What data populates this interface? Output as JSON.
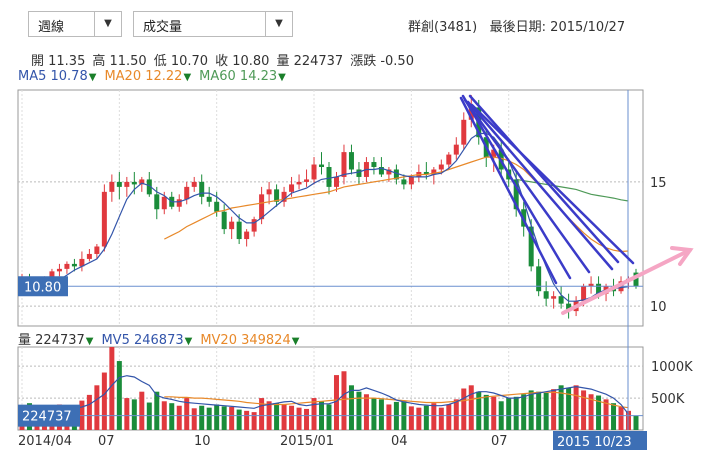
{
  "controls": {
    "period": "週線",
    "indicator": "成交量",
    "arrow": "▼"
  },
  "stock": {
    "name": "群創(3481)",
    "last_date_label": "最後日期:",
    "last_date": "2015/10/27"
  },
  "ohlc": [
    {
      "label": "開",
      "value": "11.35"
    },
    {
      "label": "高",
      "value": "11.50"
    },
    {
      "label": "低",
      "value": "10.70"
    },
    {
      "label": "收",
      "value": "10.80"
    },
    {
      "label": "量",
      "value": "224737"
    },
    {
      "label": "漲跌",
      "value": "-0.50"
    }
  ],
  "ma": [
    {
      "label": "MA5",
      "value": "10.78",
      "color": "#3355aa"
    },
    {
      "label": "MA20",
      "value": "12.22",
      "color": "#e8892a"
    },
    {
      "label": "MA60",
      "value": "14.23",
      "color": "#4f9a58"
    }
  ],
  "vol_ma": [
    {
      "label": "量",
      "value": "224737",
      "color": "#333333"
    },
    {
      "label": "MV5",
      "value": "246873",
      "color": "#3355aa"
    },
    {
      "label": "MV20",
      "value": "349824",
      "color": "#e8892a"
    }
  ],
  "down_marker": "▼",
  "colors": {
    "up": "#e0393e",
    "down": "#1a8c3a",
    "ma5": "#3355aa",
    "ma20": "#e8892a",
    "ma60": "#4f9a58",
    "badge": "#3d6fb5",
    "annotation": "#3b3bc8",
    "arrow": "#f5a6c4"
  },
  "chart_data": {
    "type": "candlestick",
    "price_axis": {
      "ticks": [
        10,
        15
      ],
      "range": [
        9.2,
        18.7
      ]
    },
    "volume_axis": {
      "ticks": [
        "1000K",
        "500K"
      ],
      "tick_values": [
        1000000,
        500000
      ],
      "range": [
        0,
        1300000
      ]
    },
    "x_labels": [
      "2014/04",
      "07",
      "10",
      "2015/01",
      "04",
      "07"
    ],
    "current_price_label": "10.80",
    "current_volume_label": "224737",
    "current_date_label": "2015 10/23",
    "candles": [
      [
        10.9,
        11.3,
        10.7,
        11.1,
        330000
      ],
      [
        11.1,
        11.3,
        10.5,
        10.6,
        420000
      ],
      [
        10.6,
        11.0,
        10.5,
        10.9,
        330000
      ],
      [
        10.8,
        11.2,
        10.6,
        11.0,
        250000
      ],
      [
        11.0,
        11.5,
        10.9,
        11.4,
        300000
      ],
      [
        11.4,
        11.7,
        11.2,
        11.5,
        400000
      ],
      [
        11.5,
        11.8,
        11.3,
        11.7,
        380000
      ],
      [
        11.7,
        11.9,
        11.4,
        11.6,
        300000
      ],
      [
        11.6,
        12.2,
        11.4,
        11.9,
        460000
      ],
      [
        11.9,
        12.3,
        11.8,
        12.1,
        550000
      ],
      [
        12.1,
        12.5,
        11.9,
        12.4,
        700000
      ],
      [
        12.4,
        14.9,
        12.2,
        14.6,
        900000
      ],
      [
        14.6,
        15.3,
        14.2,
        15.0,
        1300000
      ],
      [
        15.0,
        15.4,
        14.3,
        14.8,
        1080000
      ],
      [
        14.8,
        15.2,
        14.4,
        15.0,
        500000
      ],
      [
        15.0,
        15.4,
        14.5,
        14.9,
        480000
      ],
      [
        14.9,
        15.2,
        14.6,
        15.1,
        600000
      ],
      [
        15.1,
        15.4,
        14.4,
        14.5,
        430000
      ],
      [
        14.5,
        14.8,
        13.5,
        13.9,
        600000
      ],
      [
        13.9,
        14.6,
        13.7,
        14.4,
        450000
      ],
      [
        14.4,
        14.6,
        13.9,
        14.0,
        420000
      ],
      [
        14.0,
        14.5,
        13.8,
        14.3,
        380000
      ],
      [
        14.3,
        15.0,
        14.1,
        14.8,
        500000
      ],
      [
        14.8,
        15.2,
        14.6,
        15.0,
        340000
      ],
      [
        15.0,
        15.3,
        14.1,
        14.4,
        380000
      ],
      [
        14.4,
        14.8,
        14.0,
        14.2,
        350000
      ],
      [
        14.2,
        14.6,
        13.6,
        13.8,
        400000
      ],
      [
        13.8,
        14.1,
        12.9,
        13.1,
        370000
      ],
      [
        13.1,
        13.6,
        12.7,
        13.4,
        360000
      ],
      [
        13.4,
        13.7,
        12.5,
        12.7,
        320000
      ],
      [
        12.7,
        13.1,
        12.4,
        13.0,
        300000
      ],
      [
        13.0,
        13.6,
        12.8,
        13.5,
        280000
      ],
      [
        13.5,
        14.8,
        13.3,
        14.5,
        500000
      ],
      [
        14.5,
        15.0,
        14.1,
        14.7,
        450000
      ],
      [
        14.7,
        14.9,
        14.0,
        14.2,
        420000
      ],
      [
        14.2,
        14.8,
        14.0,
        14.6,
        400000
      ],
      [
        14.6,
        15.2,
        14.4,
        14.9,
        380000
      ],
      [
        14.9,
        15.3,
        14.7,
        15.0,
        350000
      ],
      [
        15.0,
        15.5,
        14.8,
        15.1,
        330000
      ],
      [
        15.1,
        16.0,
        14.9,
        15.7,
        500000
      ],
      [
        15.7,
        16.2,
        15.3,
        15.6,
        450000
      ],
      [
        15.6,
        15.8,
        14.5,
        14.8,
        400000
      ],
      [
        14.8,
        15.4,
        14.6,
        15.2,
        860000
      ],
      [
        15.2,
        16.5,
        14.9,
        16.2,
        920000
      ],
      [
        16.2,
        16.5,
        15.3,
        15.5,
        700000
      ],
      [
        15.5,
        15.8,
        14.9,
        15.2,
        600000
      ],
      [
        15.2,
        16.0,
        15.0,
        15.8,
        560000
      ],
      [
        15.8,
        16.0,
        15.3,
        15.6,
        500000
      ],
      [
        15.6,
        16.0,
        15.2,
        15.3,
        480000
      ],
      [
        15.3,
        15.6,
        15.0,
        15.5,
        400000
      ],
      [
        15.5,
        15.7,
        14.9,
        15.1,
        440000
      ],
      [
        15.1,
        15.3,
        14.7,
        14.9,
        450000
      ],
      [
        14.9,
        15.3,
        14.7,
        15.2,
        370000
      ],
      [
        15.2,
        15.7,
        15.0,
        15.4,
        350000
      ],
      [
        15.4,
        15.8,
        15.1,
        15.3,
        380000
      ],
      [
        15.3,
        15.6,
        14.9,
        15.5,
        420000
      ],
      [
        15.5,
        15.9,
        15.3,
        15.7,
        350000
      ],
      [
        15.7,
        16.2,
        15.5,
        16.1,
        400000
      ],
      [
        16.1,
        16.8,
        15.9,
        16.5,
        480000
      ],
      [
        16.5,
        17.8,
        16.3,
        17.5,
        650000
      ],
      [
        17.5,
        18.5,
        17.2,
        18.0,
        700000
      ],
      [
        18.0,
        18.3,
        16.5,
        16.8,
        600000
      ],
      [
        16.8,
        17.1,
        15.6,
        16.0,
        550000
      ],
      [
        16.0,
        16.5,
        15.4,
        16.3,
        520000
      ],
      [
        16.3,
        16.6,
        15.2,
        15.5,
        450000
      ],
      [
        15.5,
        15.8,
        14.8,
        15.1,
        500000
      ],
      [
        15.1,
        15.4,
        13.6,
        13.9,
        520000
      ],
      [
        13.9,
        14.2,
        12.8,
        13.2,
        560000
      ],
      [
        13.2,
        13.5,
        11.4,
        11.6,
        620000
      ],
      [
        11.6,
        11.9,
        10.4,
        10.6,
        600000
      ],
      [
        10.6,
        11.0,
        10.0,
        10.3,
        580000
      ],
      [
        10.3,
        10.6,
        9.9,
        10.4,
        640000
      ],
      [
        10.4,
        10.8,
        9.9,
        10.1,
        700000
      ],
      [
        10.1,
        10.5,
        9.5,
        9.8,
        660000
      ],
      [
        9.8,
        10.4,
        9.6,
        10.2,
        700000
      ],
      [
        10.2,
        10.9,
        10.0,
        10.8,
        620000
      ],
      [
        10.8,
        11.2,
        10.5,
        10.9,
        560000
      ],
      [
        10.9,
        11.2,
        10.3,
        10.5,
        540000
      ],
      [
        10.5,
        10.9,
        10.2,
        10.8,
        480000
      ],
      [
        10.8,
        11.1,
        10.4,
        10.6,
        420000
      ],
      [
        10.6,
        11.2,
        10.5,
        11.0,
        360000
      ],
      [
        11.0,
        11.2,
        10.7,
        11.1,
        300000
      ],
      [
        11.35,
        11.5,
        10.7,
        10.8,
        224737
      ]
    ],
    "ma5": [
      11.0,
      10.95,
      10.85,
      10.85,
      10.95,
      11.05,
      11.25,
      11.45,
      11.6,
      11.75,
      11.9,
      12.3,
      12.9,
      13.6,
      14.3,
      14.7,
      14.95,
      14.85,
      14.6,
      14.45,
      14.2,
      14.2,
      14.3,
      14.45,
      14.55,
      14.55,
      14.4,
      14.15,
      13.85,
      13.55,
      13.35,
      13.35,
      13.55,
      13.8,
      14.05,
      14.3,
      14.55,
      14.65,
      14.75,
      14.95,
      15.1,
      15.15,
      15.2,
      15.3,
      15.35,
      15.4,
      15.5,
      15.5,
      15.55,
      15.45,
      15.35,
      15.25,
      15.2,
      15.2,
      15.2,
      15.3,
      15.35,
      15.55,
      15.85,
      16.3,
      16.75,
      16.95,
      16.95,
      16.8,
      16.4,
      15.85,
      15.15,
      14.25,
      13.25,
      12.35,
      11.6,
      10.9,
      10.45,
      10.2,
      10.2,
      10.25,
      10.35,
      10.55,
      10.65,
      10.7,
      10.75,
      10.78
    ],
    "ma20": [
      null,
      null,
      null,
      null,
      null,
      null,
      null,
      null,
      null,
      null,
      null,
      null,
      null,
      null,
      null,
      null,
      null,
      null,
      null,
      12.7,
      12.85,
      13.0,
      13.2,
      13.35,
      13.5,
      13.65,
      13.8,
      13.85,
      13.95,
      14.0,
      14.05,
      14.1,
      14.15,
      14.2,
      14.25,
      14.3,
      14.35,
      14.4,
      14.45,
      14.5,
      14.55,
      14.6,
      14.7,
      14.8,
      14.85,
      14.9,
      14.95,
      15.0,
      15.05,
      15.1,
      15.15,
      15.2,
      15.25,
      15.3,
      15.3,
      15.35,
      15.4,
      15.5,
      15.6,
      15.7,
      15.8,
      15.9,
      16.0,
      16.0,
      15.95,
      15.85,
      15.7,
      15.5,
      15.2,
      14.9,
      14.55,
      14.2,
      13.85,
      13.55,
      13.25,
      12.95,
      12.7,
      12.5,
      12.35,
      12.25,
      12.2,
      12.22
    ],
    "ma60": [
      null,
      null,
      null,
      null,
      null,
      null,
      null,
      null,
      null,
      null,
      null,
      null,
      null,
      null,
      null,
      null,
      null,
      null,
      null,
      null,
      null,
      null,
      null,
      null,
      null,
      null,
      null,
      null,
      null,
      null,
      null,
      null,
      null,
      null,
      null,
      null,
      null,
      null,
      null,
      null,
      null,
      null,
      null,
      null,
      null,
      null,
      null,
      null,
      null,
      null,
      null,
      null,
      null,
      null,
      null,
      null,
      null,
      null,
      null,
      null,
      null,
      null,
      null,
      null,
      null,
      null,
      15.1,
      15.05,
      15.0,
      14.95,
      14.9,
      14.85,
      14.8,
      14.75,
      14.7,
      14.6,
      14.5,
      14.45,
      14.4,
      14.35,
      14.28,
      14.23
    ],
    "mv5": [
      380000,
      370000,
      360000,
      340000,
      330000,
      320000,
      330000,
      340000,
      360000,
      400000,
      480000,
      560000,
      700000,
      820000,
      850000,
      830000,
      760000,
      700000,
      540000,
      500000,
      480000,
      450000,
      430000,
      420000,
      410000,
      400000,
      390000,
      380000,
      370000,
      360000,
      350000,
      340000,
      380000,
      400000,
      420000,
      440000,
      450000,
      400000,
      380000,
      400000,
      410000,
      410000,
      450000,
      560000,
      620000,
      620000,
      660000,
      620000,
      580000,
      530000,
      470000,
      440000,
      420000,
      400000,
      390000,
      380000,
      380000,
      400000,
      440000,
      500000,
      560000,
      600000,
      600000,
      580000,
      540000,
      500000,
      500000,
      520000,
      560000,
      580000,
      600000,
      620000,
      640000,
      660000,
      680000,
      660000,
      640000,
      600000,
      560000,
      500000,
      400000,
      246873
    ],
    "mv20": [
      null,
      null,
      null,
      null,
      null,
      null,
      null,
      null,
      null,
      null,
      null,
      null,
      null,
      null,
      null,
      null,
      null,
      null,
      null,
      520000,
      520000,
      510000,
      510000,
      500000,
      500000,
      490000,
      480000,
      470000,
      460000,
      450000,
      430000,
      420000,
      410000,
      400000,
      400000,
      400000,
      410000,
      420000,
      430000,
      440000,
      450000,
      460000,
      470000,
      480000,
      490000,
      500000,
      500000,
      500000,
      490000,
      480000,
      470000,
      460000,
      450000,
      440000,
      430000,
      430000,
      430000,
      440000,
      450000,
      460000,
      480000,
      500000,
      520000,
      530000,
      540000,
      550000,
      560000,
      570000,
      580000,
      590000,
      590000,
      590000,
      580000,
      560000,
      540000,
      510000,
      480000,
      450000,
      420000,
      390000,
      365000,
      349824
    ]
  }
}
